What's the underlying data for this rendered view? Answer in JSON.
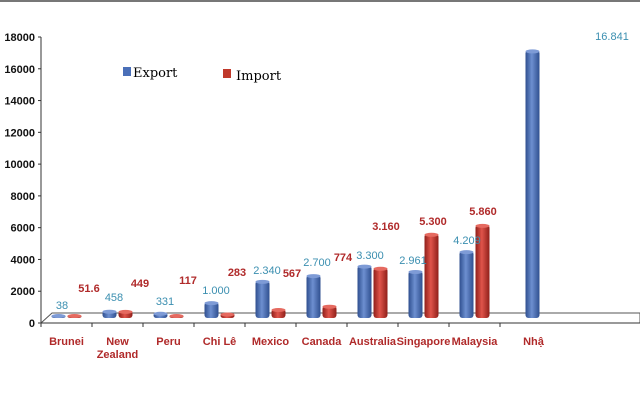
{
  "chart_data": {
    "type": "bar",
    "title": "",
    "xlabel": "",
    "ylabel": "",
    "ylim": [
      0,
      18000
    ],
    "yticks": [
      0,
      2000,
      4000,
      6000,
      8000,
      10000,
      12000,
      14000,
      16000,
      18000
    ],
    "grid": false,
    "legend_placement": "top-left",
    "categories": [
      "Brunei",
      "New Zealand",
      "Peru",
      "Chi Lê",
      "Mexico",
      "Canada",
      "Australia",
      "Singapore",
      "Malaysia",
      "Nhậ"
    ],
    "series": [
      {
        "name": "Export",
        "color": "#4a6fb8",
        "values": [
          38,
          458,
          331,
          1000,
          2340,
          2700,
          3300,
          2961,
          4209,
          16841
        ],
        "labels": [
          "38",
          "458",
          "331",
          "1.000",
          "2.340",
          "2.700",
          "3.300",
          "2.961",
          "4.209",
          "16.841"
        ]
      },
      {
        "name": "Import",
        "color": "#c0392b",
        "values": [
          51.6,
          449,
          117,
          283,
          567,
          774,
          3160,
          5300,
          5860,
          null
        ],
        "labels": [
          "51.6",
          "449",
          "117",
          "283",
          "567",
          "774",
          "3.160",
          "5.300",
          "5.860",
          null
        ]
      }
    ]
  }
}
